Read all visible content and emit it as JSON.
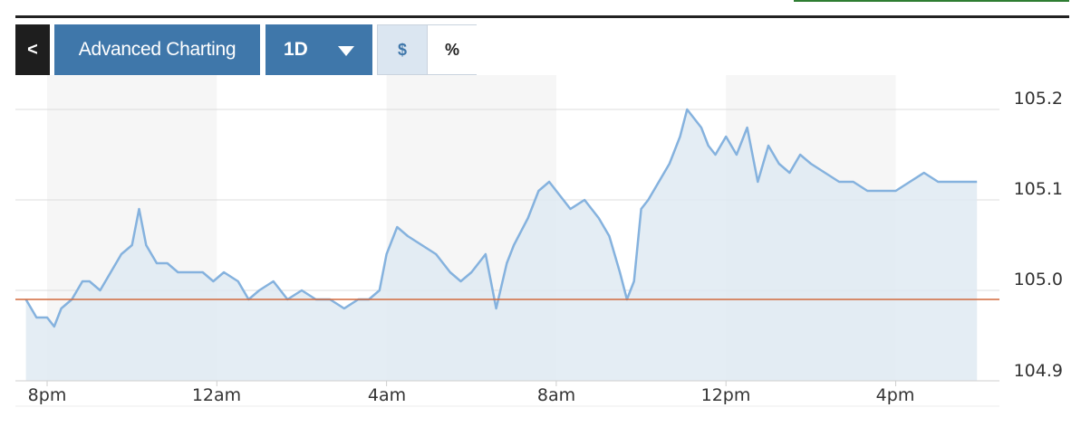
{
  "toolbar": {
    "back_label": "<",
    "advanced_label": "Advanced Charting",
    "range_label": "1D",
    "currency_toggle_label": "$",
    "percent_toggle_label": "%",
    "currency_toggle_active": true
  },
  "colors": {
    "accent_button": "#3f77aa",
    "line": "#85b2de",
    "area_fill": "#dfeaf2",
    "reference_line": "#d2693c",
    "band": "#f6f6f6"
  },
  "chart_data": {
    "type": "area",
    "title": "",
    "xlabel": "",
    "ylabel": "",
    "ylim": [
      104.9,
      105.2
    ],
    "yticks": [
      "105.2",
      "105.1",
      "105.0",
      "104.9"
    ],
    "xticks": [
      "8pm",
      "12am",
      "4am",
      "8am",
      "12pm",
      "4pm"
    ],
    "x_range": [
      "7:30pm",
      "5:55pm"
    ],
    "reference_line": 104.99,
    "grid": true,
    "series": [
      {
        "x": [
          "7:30pm",
          "7:45pm",
          "8pm",
          "8:10pm",
          "8:20pm",
          "8:35pm",
          "8:50pm",
          "9pm",
          "9:15pm",
          "9:30pm",
          "9:45pm",
          "10pm",
          "10:10pm",
          "10:20pm",
          "10:35pm",
          "10:50pm",
          "11:05pm",
          "11:20pm",
          "11:40pm",
          "11:55pm",
          "12:10am",
          "12:30am",
          "12:45am",
          "1am",
          "1:20am",
          "1:40am",
          "2am",
          "2:20am",
          "2:40am",
          "3am",
          "3:20am",
          "3:35am",
          "3:50am",
          "4am",
          "4:15am",
          "4:30am",
          "4:50am",
          "5:10am",
          "5:30am",
          "5:45am",
          "6am",
          "6:20am",
          "6:35am",
          "6:50am",
          "7am",
          "7:20am",
          "7:35am",
          "7:50am",
          "8am",
          "8:20am",
          "8:40am",
          "9am",
          "9:15am",
          "9:30am",
          "9:40am",
          "9:50am",
          "10am",
          "10:10am",
          "10:25am",
          "10:40am",
          "10:55am",
          "11:05am",
          "11:15am",
          "11:25am",
          "11:35am",
          "11:45am",
          "12pm",
          "12:15pm",
          "12:30pm",
          "12:45pm",
          "1pm",
          "1:15pm",
          "1:30pm",
          "1:45pm",
          "2pm",
          "2:20pm",
          "2:40pm",
          "3pm",
          "3:20pm",
          "3:40pm",
          "4pm",
          "4:20pm",
          "4:40pm",
          "5pm",
          "5:20pm",
          "5:40pm",
          "5:55pm"
        ],
        "y": [
          104.99,
          104.97,
          104.97,
          104.96,
          104.98,
          104.99,
          105.01,
          105.01,
          105.0,
          105.02,
          105.04,
          105.05,
          105.09,
          105.05,
          105.03,
          105.03,
          105.02,
          105.02,
          105.02,
          105.01,
          105.02,
          105.01,
          104.99,
          105.0,
          105.01,
          104.99,
          105.0,
          104.99,
          104.99,
          104.98,
          104.99,
          104.99,
          105.0,
          105.04,
          105.07,
          105.06,
          105.05,
          105.04,
          105.02,
          105.01,
          105.02,
          105.04,
          104.98,
          105.03,
          105.05,
          105.08,
          105.11,
          105.12,
          105.11,
          105.09,
          105.1,
          105.08,
          105.06,
          105.02,
          104.99,
          105.01,
          105.09,
          105.1,
          105.12,
          105.14,
          105.17,
          105.2,
          105.19,
          105.18,
          105.16,
          105.15,
          105.17,
          105.15,
          105.18,
          105.12,
          105.16,
          105.14,
          105.13,
          105.15,
          105.14,
          105.13,
          105.12,
          105.12,
          105.11,
          105.11,
          105.11,
          105.12,
          105.13,
          105.12,
          105.12,
          105.12,
          105.12
        ]
      }
    ]
  }
}
